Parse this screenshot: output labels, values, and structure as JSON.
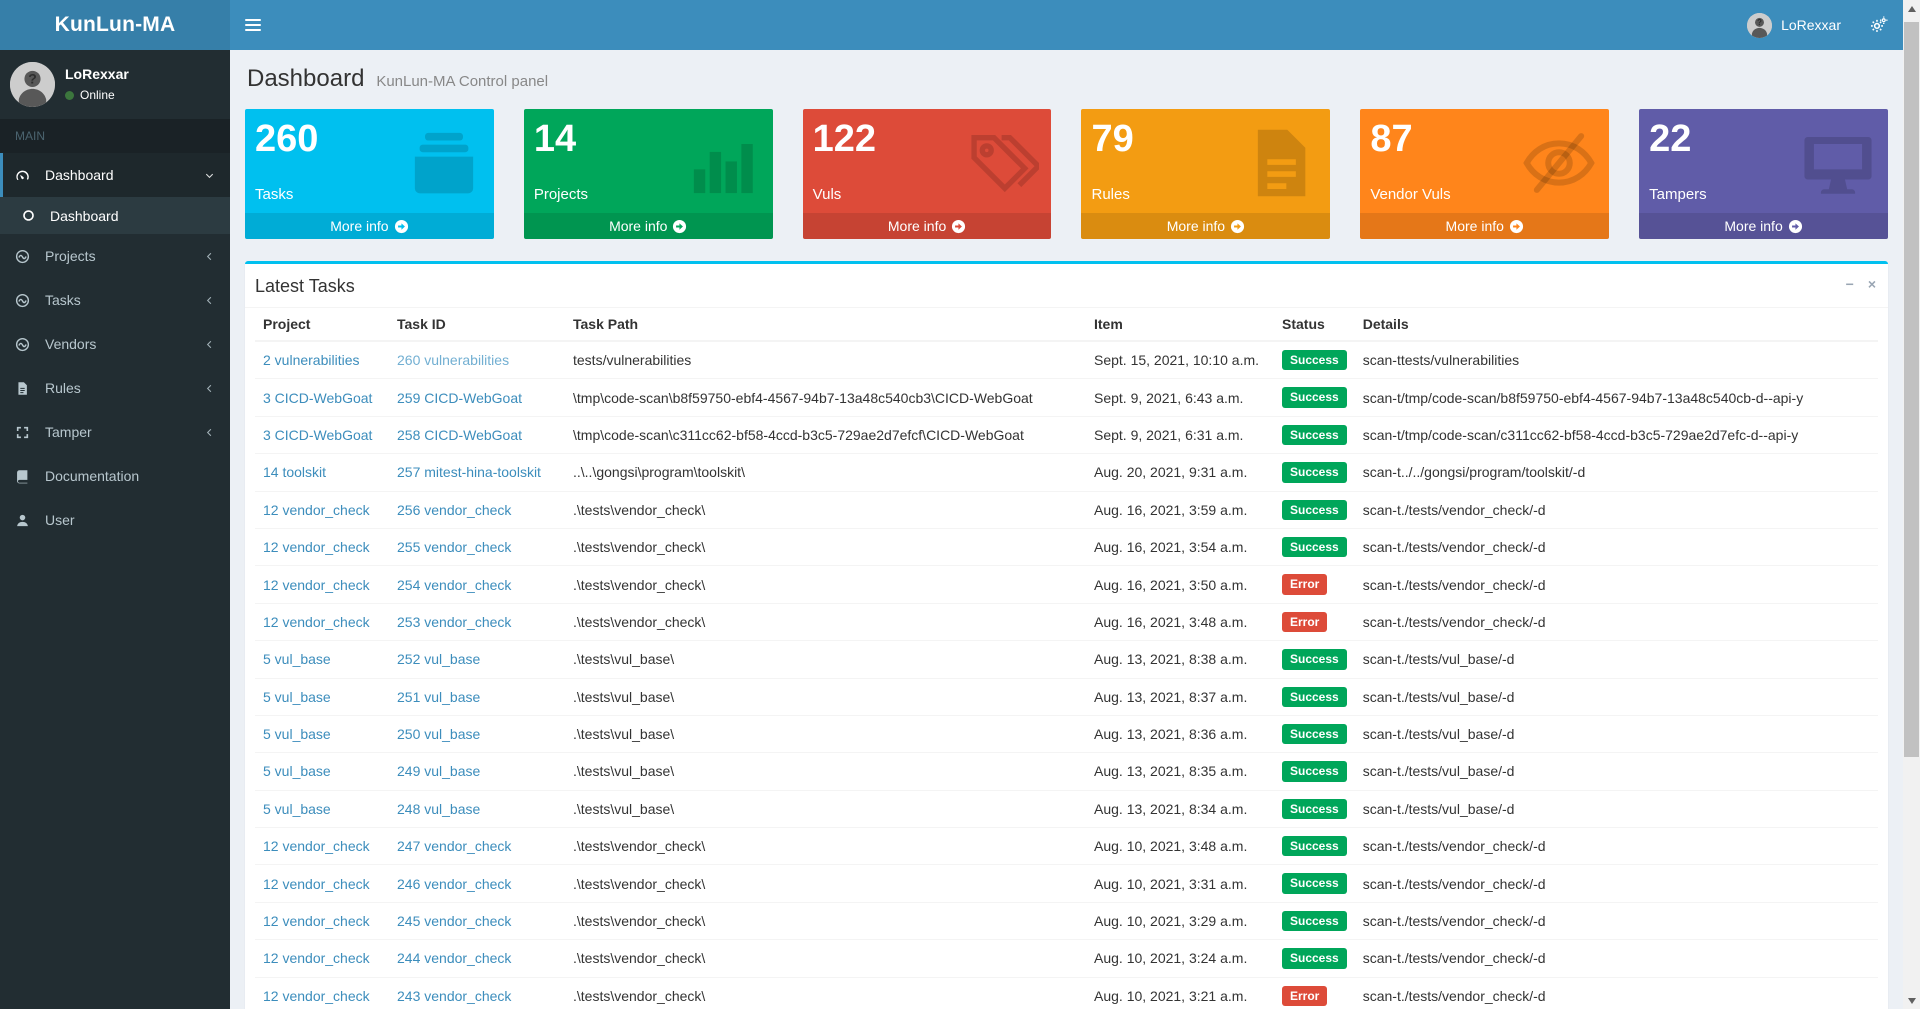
{
  "app": {
    "brand": "KunLun-MA"
  },
  "navbar": {
    "user_name": "LoRexxar"
  },
  "colors": {
    "accent": "#3c8dbc",
    "logo_bg": "#367fa9",
    "sidebar_bg": "#222d32",
    "panel_top_border": "#00c0ef",
    "link": "#3c8dbc",
    "visited_link": "#72afd2",
    "online_dot": "#3c763d"
  },
  "sidebar": {
    "user": {
      "name": "LoRexxar",
      "status": "Online"
    },
    "section_label": "MAIN",
    "items": [
      {
        "label": "Dashboard",
        "icon": "gauge-icon",
        "active": true,
        "arrow": "down",
        "children": [
          {
            "label": "Dashboard",
            "icon": "circle-o-icon",
            "active": true
          }
        ]
      },
      {
        "label": "Projects",
        "icon": "wave-circle-icon",
        "arrow": "left"
      },
      {
        "label": "Tasks",
        "icon": "wave-circle-icon",
        "arrow": "left"
      },
      {
        "label": "Vendors",
        "icon": "wave-circle-icon",
        "arrow": "left"
      },
      {
        "label": "Rules",
        "icon": "file-icon",
        "arrow": "left"
      },
      {
        "label": "Tamper",
        "icon": "expand-icon",
        "arrow": "left"
      },
      {
        "label": "Documentation",
        "icon": "book-icon",
        "arrow": null
      },
      {
        "label": "User",
        "icon": "user-icon",
        "arrow": null
      }
    ]
  },
  "header": {
    "title": "Dashboard",
    "subtitle": "KunLun-MA Control panel"
  },
  "stat_boxes": [
    {
      "value": "260",
      "label": "Tasks",
      "color": "#00c0ef",
      "icon": "archive-icon",
      "more_label": "More info"
    },
    {
      "value": "14",
      "label": "Projects",
      "color": "#00a65a",
      "icon": "bar-chart-icon",
      "more_label": "More info"
    },
    {
      "value": "122",
      "label": "Vuls",
      "color": "#dd4b39",
      "icon": "tags-icon",
      "more_label": "More info"
    },
    {
      "value": "79",
      "label": "Rules",
      "color": "#f39c12",
      "icon": "file-text-icon",
      "more_label": "More info"
    },
    {
      "value": "87",
      "label": "Vendor Vuls",
      "color": "#ff851b",
      "icon": "eye-slash-icon",
      "more_label": "More info"
    },
    {
      "value": "22",
      "label": "Tampers",
      "color": "#605ca8",
      "icon": "desktop-icon",
      "more_label": "More info"
    }
  ],
  "panel": {
    "title": "Latest Tasks",
    "tools": {
      "collapse": "−",
      "close": "×"
    },
    "columns": [
      "Project",
      "Task ID",
      "Task Path",
      "Item",
      "Status",
      "Details"
    ],
    "status_colors": {
      "Success": "#00a65a",
      "Error": "#dd4b39"
    },
    "rows": [
      {
        "project": "2 vulnerabilities",
        "task_id": "260 vulnerabilities",
        "task_id_muted": true,
        "task_path": "tests/vulnerabilities",
        "item": "Sept. 15, 2021, 10:10 a.m.",
        "status": "Success",
        "details": "scan-ttests/vulnerabilities"
      },
      {
        "project": "3 CICD-WebGoat",
        "task_id": "259 CICD-WebGoat",
        "task_path": "\\tmp\\code-scan\\b8f59750-ebf4-4567-94b7-13a48c540cb3\\CICD-WebGoat",
        "item": "Sept. 9, 2021, 6:43 a.m.",
        "status": "Success",
        "details": "scan-t/tmp/code-scan/b8f59750-ebf4-4567-94b7-13a48c540cb-d--api-y"
      },
      {
        "project": "3 CICD-WebGoat",
        "task_id": "258 CICD-WebGoat",
        "task_path": "\\tmp\\code-scan\\c311cc62-bf58-4ccd-b3c5-729ae2d7efcf\\CICD-WebGoat",
        "item": "Sept. 9, 2021, 6:31 a.m.",
        "status": "Success",
        "details": "scan-t/tmp/code-scan/c311cc62-bf58-4ccd-b3c5-729ae2d7efc-d--api-y"
      },
      {
        "project": "14 toolskit",
        "task_id": "257 mitest-hina-toolskit",
        "task_path": "..\\..\\gongsi\\program\\toolskit\\",
        "item": "Aug. 20, 2021, 9:31 a.m.",
        "status": "Success",
        "details": "scan-t../../gongsi/program/toolskit/-d"
      },
      {
        "project": "12 vendor_check",
        "task_id": "256 vendor_check",
        "task_path": ".\\tests\\vendor_check\\",
        "item": "Aug. 16, 2021, 3:59 a.m.",
        "status": "Success",
        "details": "scan-t./tests/vendor_check/-d"
      },
      {
        "project": "12 vendor_check",
        "task_id": "255 vendor_check",
        "task_path": ".\\tests\\vendor_check\\",
        "item": "Aug. 16, 2021, 3:54 a.m.",
        "status": "Success",
        "details": "scan-t./tests/vendor_check/-d"
      },
      {
        "project": "12 vendor_check",
        "task_id": "254 vendor_check",
        "task_path": ".\\tests\\vendor_check\\",
        "item": "Aug. 16, 2021, 3:50 a.m.",
        "status": "Error",
        "details": "scan-t./tests/vendor_check/-d"
      },
      {
        "project": "12 vendor_check",
        "task_id": "253 vendor_check",
        "task_path": ".\\tests\\vendor_check\\",
        "item": "Aug. 16, 2021, 3:48 a.m.",
        "status": "Error",
        "details": "scan-t./tests/vendor_check/-d"
      },
      {
        "project": "5 vul_base",
        "task_id": "252 vul_base",
        "task_path": ".\\tests\\vul_base\\",
        "item": "Aug. 13, 2021, 8:38 a.m.",
        "status": "Success",
        "details": "scan-t./tests/vul_base/-d"
      },
      {
        "project": "5 vul_base",
        "task_id": "251 vul_base",
        "task_path": ".\\tests\\vul_base\\",
        "item": "Aug. 13, 2021, 8:37 a.m.",
        "status": "Success",
        "details": "scan-t./tests/vul_base/-d"
      },
      {
        "project": "5 vul_base",
        "task_id": "250 vul_base",
        "task_path": ".\\tests\\vul_base\\",
        "item": "Aug. 13, 2021, 8:36 a.m.",
        "status": "Success",
        "details": "scan-t./tests/vul_base/-d"
      },
      {
        "project": "5 vul_base",
        "task_id": "249 vul_base",
        "task_path": ".\\tests\\vul_base\\",
        "item": "Aug. 13, 2021, 8:35 a.m.",
        "status": "Success",
        "details": "scan-t./tests/vul_base/-d"
      },
      {
        "project": "5 vul_base",
        "task_id": "248 vul_base",
        "task_path": ".\\tests\\vul_base\\",
        "item": "Aug. 13, 2021, 8:34 a.m.",
        "status": "Success",
        "details": "scan-t./tests/vul_base/-d"
      },
      {
        "project": "12 vendor_check",
        "task_id": "247 vendor_check",
        "task_path": ".\\tests\\vendor_check\\",
        "item": "Aug. 10, 2021, 3:48 a.m.",
        "status": "Success",
        "details": "scan-t./tests/vendor_check/-d"
      },
      {
        "project": "12 vendor_check",
        "task_id": "246 vendor_check",
        "task_path": ".\\tests\\vendor_check\\",
        "item": "Aug. 10, 2021, 3:31 a.m.",
        "status": "Success",
        "details": "scan-t./tests/vendor_check/-d"
      },
      {
        "project": "12 vendor_check",
        "task_id": "245 vendor_check",
        "task_path": ".\\tests\\vendor_check\\",
        "item": "Aug. 10, 2021, 3:29 a.m.",
        "status": "Success",
        "details": "scan-t./tests/vendor_check/-d"
      },
      {
        "project": "12 vendor_check",
        "task_id": "244 vendor_check",
        "task_path": ".\\tests\\vendor_check\\",
        "item": "Aug. 10, 2021, 3:24 a.m.",
        "status": "Success",
        "details": "scan-t./tests/vendor_check/-d"
      },
      {
        "project": "12 vendor_check",
        "task_id": "243 vendor_check",
        "task_path": ".\\tests\\vendor_check\\",
        "item": "Aug. 10, 2021, 3:21 a.m.",
        "status": "Error",
        "details": "scan-t./tests/vendor_check/-d"
      }
    ]
  }
}
